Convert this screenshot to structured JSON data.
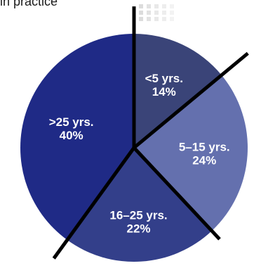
{
  "caption_text": "in practice",
  "chart_data": {
    "type": "pie",
    "title": "",
    "start_angle_deg": 0,
    "slices": [
      {
        "label": "<5 yrs.",
        "value": 14,
        "value_label": "14%",
        "color": "#3a4478"
      },
      {
        "label": "5–15 yrs.",
        "value": 24,
        "value_label": "24%",
        "color": "#6470ae"
      },
      {
        "label": "16–25 yrs.",
        "value": 22,
        "value_label": "22%",
        "color": "#333f8a"
      },
      {
        "label": ">25 yrs.",
        "value": 40,
        "value_label": "40%",
        "color": "#1f2a86"
      }
    ],
    "separator_color": "#000000",
    "decorative_dots_color": "#d8d8d8"
  }
}
